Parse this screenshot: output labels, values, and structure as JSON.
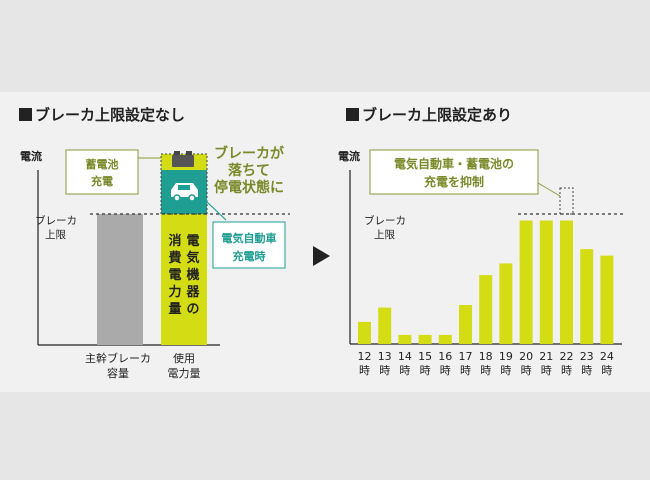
{
  "left": {
    "heading": "ブレーカ上限設定なし",
    "ylabel": "電流",
    "breaker_label": [
      "ブレーカ",
      "上限"
    ],
    "cat_main_breaker": [
      "主幹ブレーカ",
      "容量"
    ],
    "cat_usage": [
      "使用",
      "電力量"
    ],
    "bar_text": [
      "電",
      "気",
      "機",
      "器",
      "の",
      "消",
      "費",
      "電",
      "力",
      "量"
    ],
    "callout_battery": [
      "蓄電池",
      "充電"
    ],
    "callout_ev": [
      "電気自動車",
      "充電時"
    ],
    "warning": [
      "ブレーカが",
      "落ちて",
      "停電状態に"
    ]
  },
  "right": {
    "heading": "ブレーカ上限設定あり",
    "ylabel": "電流",
    "breaker_label": [
      "ブレーカ",
      "上限"
    ],
    "callout": [
      "電気自動車・蓄電池の",
      "充電を抑制"
    ]
  },
  "colors": {
    "accent": "#d4dc14",
    "teal": "#1f9e93",
    "gray": "#aaaaaa",
    "outline": "#8a9a3c"
  },
  "chart_data": [
    {
      "type": "bar",
      "title": "ブレーカ上限設定なし",
      "ylabel": "電流",
      "categories": [
        "主幹ブレーカ容量",
        "使用電力量"
      ],
      "series": [
        {
          "name": "",
          "values": [
            100,
            null
          ]
        },
        {
          "name": "電気機器の消費電力量",
          "values": [
            null,
            100
          ]
        },
        {
          "name": "電気自動車充電時",
          "values": [
            null,
            25
          ]
        },
        {
          "name": "蓄電池充電",
          "values": [
            null,
            20
          ]
        }
      ],
      "annotations": [
        "ブレーカ上限",
        "ブレーカが落ちて停電状態に"
      ]
    },
    {
      "type": "bar",
      "title": "ブレーカ上限設定あり",
      "ylabel": "電流",
      "categories": [
        "12",
        "13",
        "14",
        "15",
        "16",
        "17",
        "18",
        "19",
        "20",
        "21",
        "22",
        "23",
        "24"
      ],
      "category_suffix": "時",
      "values": [
        17,
        28,
        7,
        7,
        7,
        30,
        53,
        62,
        95,
        95,
        95,
        73,
        68
      ],
      "ylim": [
        0,
        100
      ],
      "annotations": [
        "ブレーカ上限",
        "電気自動車・蓄電池の充電を抑制"
      ]
    }
  ]
}
